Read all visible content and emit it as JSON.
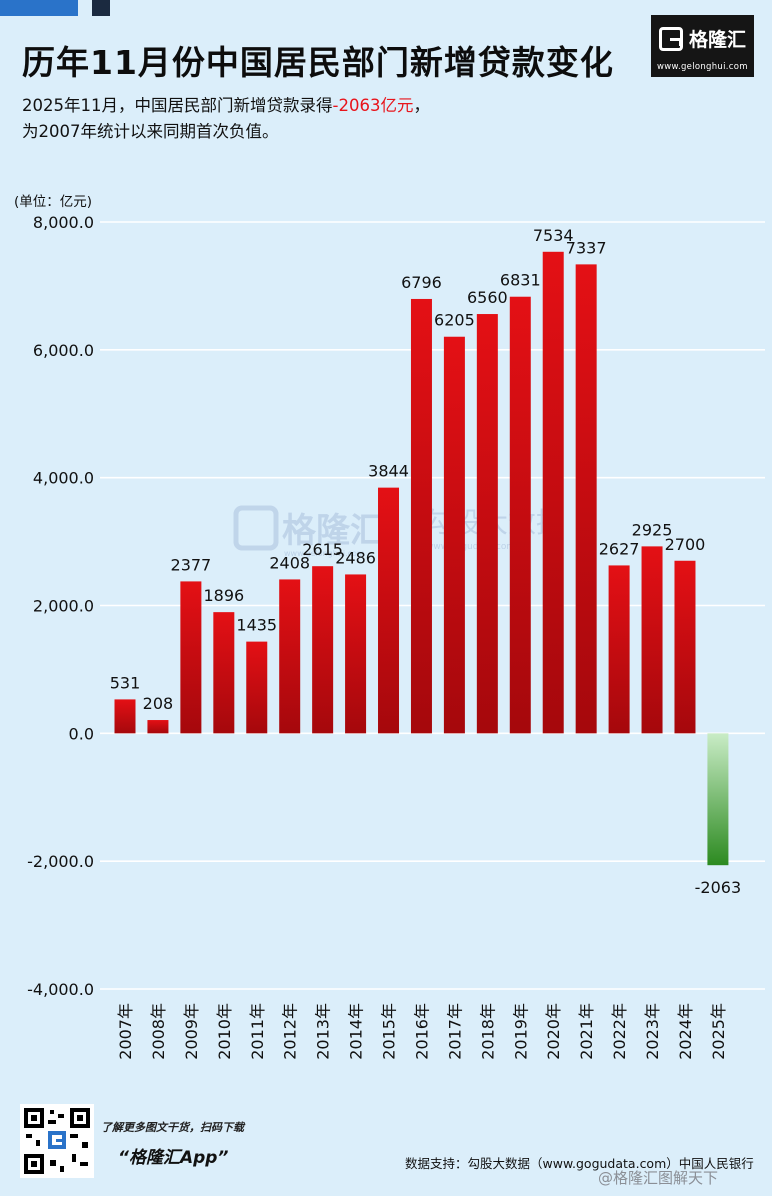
{
  "header": {
    "title": "历年11月份中国居民部门新增贷款变化",
    "subtitle_line1_prefix": "2025年11月，中国居民部门新增贷款录得",
    "subtitle_line1_highlight": "-2063亿元",
    "subtitle_line1_suffix": "，",
    "subtitle_line2": "为2007年统计以来同期首次负值。"
  },
  "logo": {
    "name": "格隆汇",
    "url": "www.gelonghui.com"
  },
  "watermarks": {
    "brand": "格隆汇",
    "brand_url": "www.gelonghui.com",
    "data": "勾股大数据",
    "data_url": "www.gogudata.com"
  },
  "colors": {
    "background": "#dbeefa",
    "positive_bar": "#d40f14",
    "negative_bar": "#2f8f23",
    "highlight_text": "#e8141b",
    "grid": "#ffffff"
  },
  "chart_data": {
    "type": "bar",
    "unit_label": "(单位：亿元)",
    "categories": [
      "2007年",
      "2008年",
      "2009年",
      "2010年",
      "2011年",
      "2012年",
      "2013年",
      "2014年",
      "2015年",
      "2016年",
      "2017年",
      "2018年",
      "2019年",
      "2020年",
      "2021年",
      "2022年",
      "2023年",
      "2024年",
      "2025年"
    ],
    "values": [
      531,
      208,
      2377,
      1896,
      1435,
      2408,
      2615,
      2486,
      3844,
      6796,
      6205,
      6560,
      6831,
      7534,
      7337,
      2627,
      2925,
      2700,
      -2063
    ],
    "ylim": [
      -4000,
      8000
    ],
    "yticks": [
      8000,
      6000,
      4000,
      2000,
      0,
      -2000,
      -4000
    ],
    "ytick_labels": [
      "8,000.0",
      "6,000.0",
      "4,000.0",
      "2,000.0",
      "0.0",
      "-2,000.0",
      "-4,000.0"
    ],
    "grid": true,
    "legend": "none"
  },
  "footer": {
    "tagline": "了解更多图文干货，扫码下载",
    "app_name": "“格隆汇App”",
    "source": "数据支持：勾股大数据（www.gogudata.com）中国人民银行",
    "weibo_mark": "@格隆汇图解天下",
    "qr_icon": "qr-code-icon"
  }
}
